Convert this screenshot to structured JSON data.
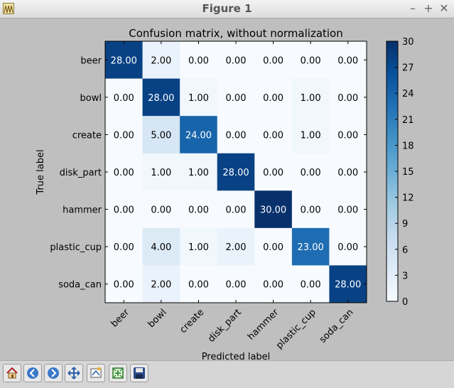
{
  "window": {
    "title": "Figure 1",
    "controls": {
      "minimize": "–",
      "maximize": "+",
      "close": "✕"
    }
  },
  "toolbar": {
    "buttons": [
      {
        "name": "home-button",
        "icon": "home-icon"
      },
      {
        "name": "back-button",
        "icon": "arrow-left-icon"
      },
      {
        "name": "forward-button",
        "icon": "arrow-right-icon"
      },
      {
        "name": "pan-button",
        "icon": "move-icon"
      },
      {
        "name": "zoom-button",
        "icon": "zoom-rect-icon"
      },
      {
        "name": "subplots-button",
        "icon": "configure-icon"
      },
      {
        "name": "save-button",
        "icon": "save-icon"
      }
    ]
  },
  "chart_data": {
    "type": "heatmap",
    "title": "Confusion matrix, without normalization",
    "xlabel": "Predicted label",
    "ylabel": "True label",
    "x_categories": [
      "beer",
      "bowl",
      "create",
      "disk_part",
      "hammer",
      "plastic_cup",
      "soda_can"
    ],
    "y_categories": [
      "beer",
      "bowl",
      "create",
      "disk_part",
      "hammer",
      "plastic_cup",
      "soda_can"
    ],
    "values": [
      [
        28,
        2,
        0,
        0,
        0,
        0,
        0
      ],
      [
        0,
        28,
        1,
        0,
        0,
        1,
        0
      ],
      [
        0,
        5,
        24,
        0,
        0,
        1,
        0
      ],
      [
        0,
        1,
        1,
        28,
        0,
        0,
        0
      ],
      [
        0,
        0,
        0,
        0,
        30,
        0,
        0
      ],
      [
        0,
        4,
        1,
        2,
        0,
        23,
        0
      ],
      [
        0,
        2,
        0,
        0,
        0,
        0,
        28
      ]
    ],
    "value_format": "0.00",
    "colormap": "Blues",
    "color_low": "#f7fbff",
    "color_high": "#08306b",
    "colorbar": {
      "range": [
        0,
        30
      ],
      "ticks": [
        0,
        3,
        6,
        9,
        12,
        15,
        18,
        21,
        24,
        27,
        30
      ]
    }
  }
}
